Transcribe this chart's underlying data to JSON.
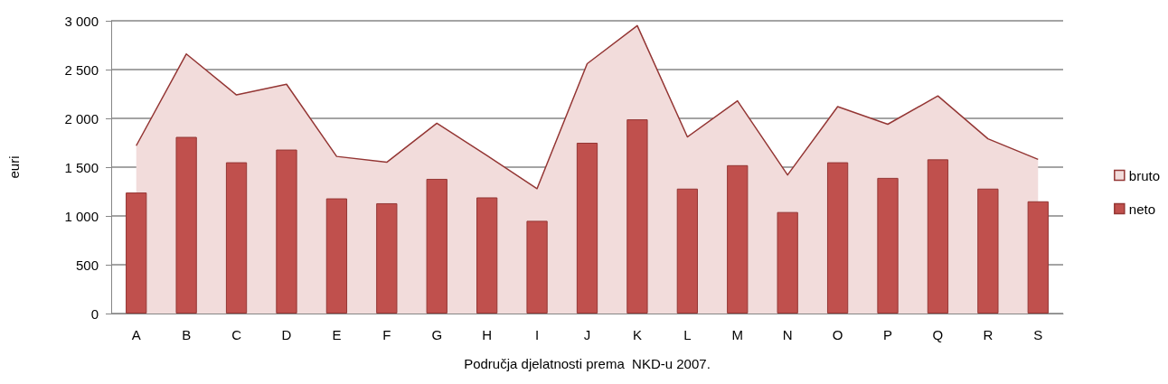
{
  "chart_data": {
    "type": "bar",
    "xlabel": "Područja djelatnosti prema  NKD-u 2007.",
    "ylabel": "euri",
    "categories": [
      "A",
      "B",
      "C",
      "D",
      "E",
      "F",
      "G",
      "H",
      "I",
      "J",
      "K",
      "L",
      "M",
      "N",
      "O",
      "P",
      "Q",
      "R",
      "S"
    ],
    "series": [
      {
        "name": "bruto",
        "type": "area",
        "color": "#f2dcdb",
        "values": [
          1720,
          2660,
          2240,
          2350,
          1610,
          1550,
          1950,
          1620,
          1280,
          2560,
          2950,
          1810,
          2180,
          1420,
          2120,
          1940,
          2230,
          1790,
          1580
        ]
      },
      {
        "name": "neto",
        "color": "#c0504d",
        "values": [
          1240,
          1810,
          1550,
          1680,
          1180,
          1130,
          1380,
          1190,
          950,
          1750,
          1990,
          1280,
          1520,
          1040,
          1550,
          1390,
          1580,
          1280,
          1150
        ]
      }
    ],
    "ylim": [
      0,
      3000
    ],
    "yticks": [
      0,
      500,
      {
        "value": 1000,
        "label": "1 000"
      },
      {
        "value": 1500,
        "label": "1 500"
      },
      {
        "value": 2000,
        "label": "2 000"
      },
      {
        "value": 2500,
        "label": "2 500"
      },
      {
        "value": 3000,
        "label": "3 000"
      }
    ],
    "grid": "y",
    "legend": "right"
  }
}
